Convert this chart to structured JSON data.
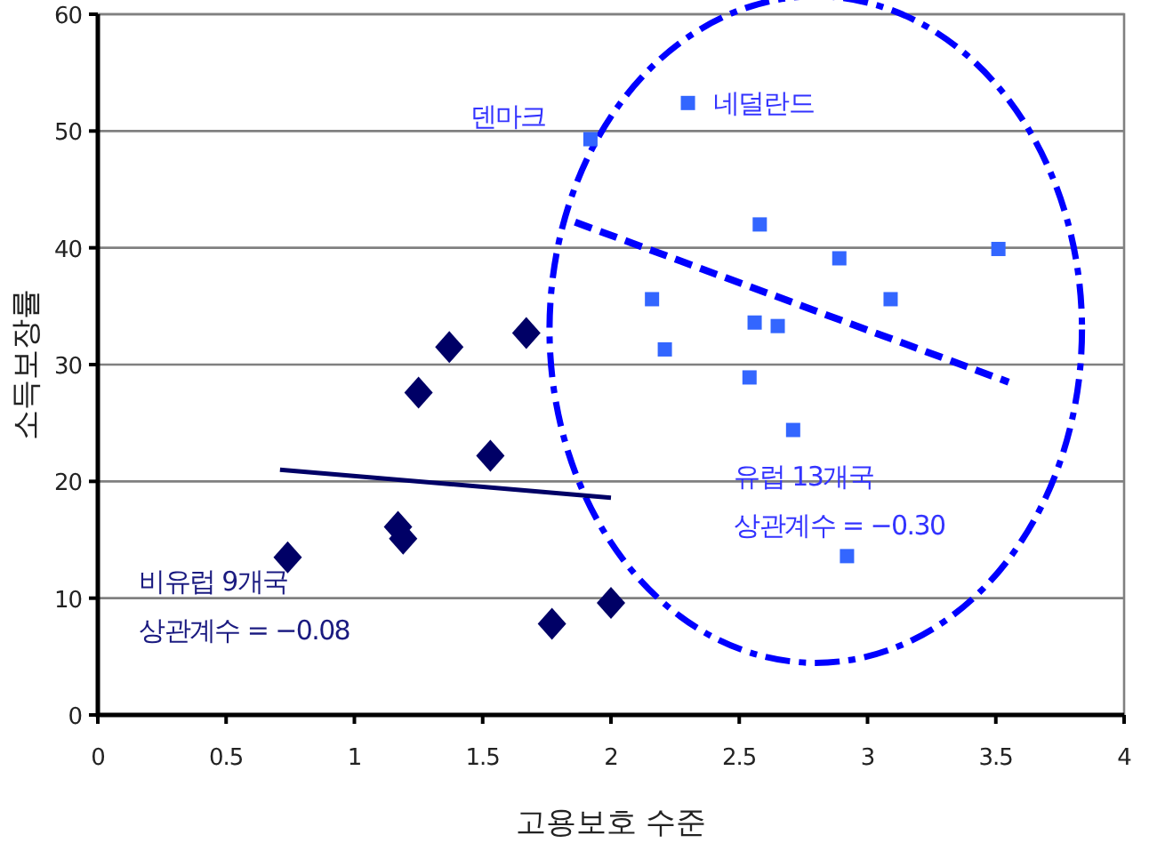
{
  "chart_data": {
    "type": "scatter",
    "xlabel": "고용보호 수준",
    "ylabel": "소득보장률",
    "xlim": [
      0,
      4
    ],
    "ylim": [
      0,
      60
    ],
    "xticks": [
      0,
      0.5,
      1,
      1.5,
      2,
      2.5,
      3,
      3.5,
      4
    ],
    "yticks": [
      0,
      10,
      20,
      30,
      40,
      50,
      60
    ],
    "grid": "y",
    "series": [
      {
        "color": "#000066",
        "marker": "diamond",
        "x": [
          0.74,
          1.17,
          1.19,
          1.25,
          1.37,
          1.53,
          1.67,
          1.77,
          2.0
        ],
        "values": [
          13.5,
          16.1,
          15.1,
          27.6,
          31.5,
          22.2,
          32.7,
          7.8,
          9.6
        ]
      },
      {
        "color": "#3366ff",
        "marker": "square",
        "x": [
          1.92,
          2.3,
          2.58,
          2.89,
          3.51,
          2.16,
          3.09,
          2.56,
          2.65,
          2.21,
          2.54,
          2.71,
          2.92
        ],
        "values": [
          49.3,
          52.4,
          42.0,
          39.1,
          39.9,
          35.6,
          35.6,
          33.6,
          33.3,
          31.3,
          28.9,
          24.4,
          13.6
        ]
      },
      {
        "type": "line",
        "color": "#000066",
        "line_style": "solid",
        "marker": "none",
        "x": [
          0.71,
          2.0
        ],
        "values": [
          21.0,
          18.6
        ]
      },
      {
        "type": "line",
        "color": "#0000ff",
        "line_style": "dashed",
        "marker": "none",
        "x": [
          1.86,
          3.55
        ],
        "values": [
          42.2,
          28.5
        ]
      }
    ],
    "annotations": [
      {
        "text": "덴마크",
        "x": 1.92,
        "y": 49.3
      },
      {
        "text": "네덜란드",
        "x": 2.3,
        "y": 52.4
      },
      "비유럽 9개국",
      "상관계수 = −0.08",
      "유럽 13개국",
      "상관계수 = −0.30"
    ]
  }
}
